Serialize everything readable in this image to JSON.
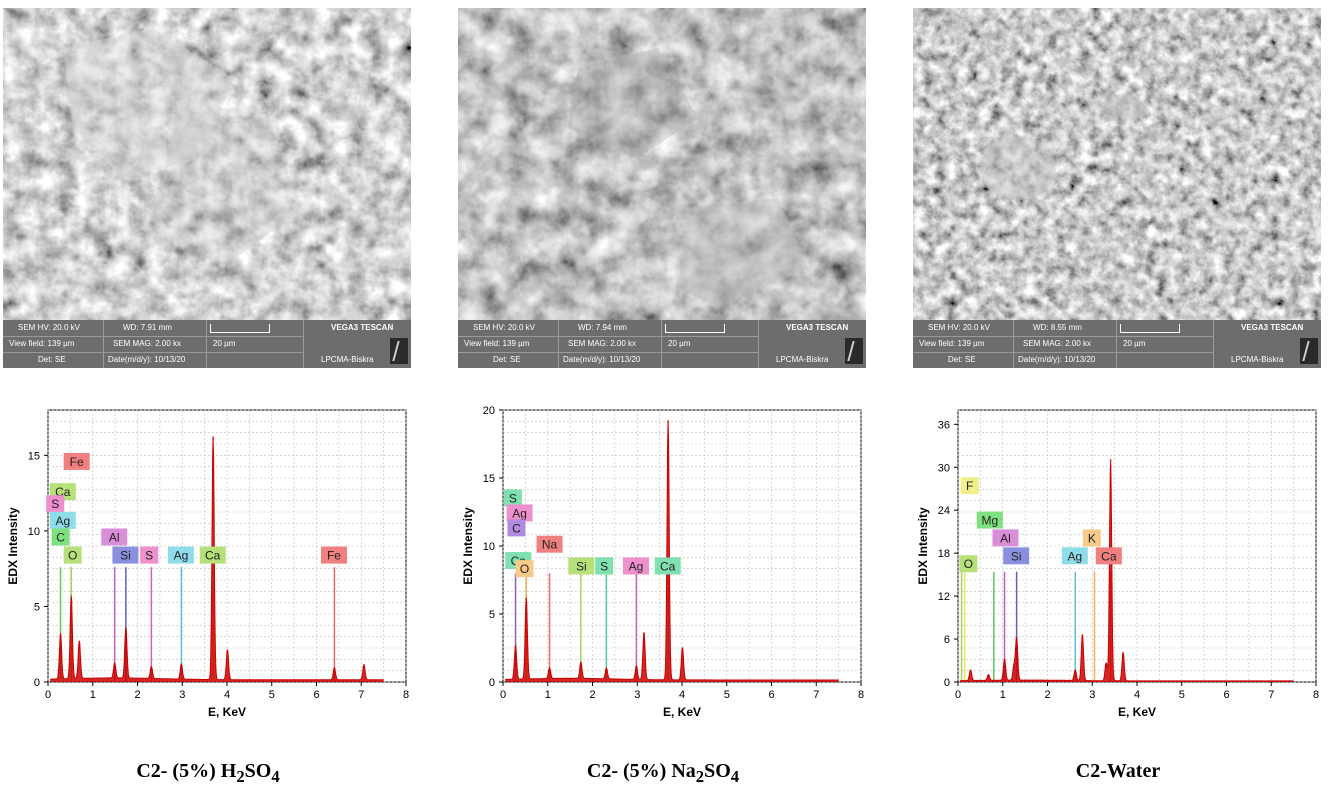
{
  "panels": [
    {
      "sem": {
        "hv": "SEM HV: 20.0 kV",
        "wd": "WD: 7.91 mm",
        "brand": "VEGA3 TESCAN",
        "field": "View field: 139 µm",
        "mag": "SEM MAG: 2.00 kx",
        "scale": "20 µm",
        "det": "Det: SE",
        "date": "Date(m/d/y): 10/13/20",
        "lab": "LPCMA-Biskra"
      },
      "caption": {
        "prefix": "C2- (5%) H",
        "sub1": "2",
        "mid": "SO",
        "sub2": "4"
      }
    },
    {
      "sem": {
        "hv": "SEM HV: 20.0 kV",
        "wd": "WD: 7.94 mm",
        "brand": "VEGA3 TESCAN",
        "field": "View field: 139 µm",
        "mag": "SEM MAG: 2.00 kx",
        "scale": "20 µm",
        "det": "Det: SE",
        "date": "Date(m/d/y): 10/13/20",
        "lab": "LPCMA-Biskra"
      },
      "caption": {
        "prefix": "C2- (5%) Na",
        "sub1": "2",
        "mid": "SO",
        "sub2": "4"
      }
    },
    {
      "sem": {
        "hv": "SEM HV: 20.0 kV",
        "wd": "WD: 8.55 mm",
        "brand": "VEGA3 TESCAN",
        "field": "View field: 139 µm",
        "mag": "SEM MAG: 2.00 kx",
        "scale": "20 µm",
        "det": "Det: SE",
        "date": "Date(m/d/y): 10/13/20",
        "lab": "LPCMA-Biskra"
      },
      "caption": {
        "prefix": "C2-Water",
        "sub1": "",
        "mid": "",
        "sub2": ""
      }
    }
  ],
  "chart_data": [
    {
      "type": "line",
      "xlabel": "E, KeV",
      "ylabel": "EDX Intensity",
      "xlim": [
        0,
        8
      ],
      "ylim": [
        0,
        18
      ],
      "grid": true,
      "xticks": [
        0,
        1,
        2,
        3,
        4,
        5,
        6,
        7,
        8
      ],
      "yticks": [
        0,
        5,
        10,
        15
      ],
      "spectrum_color": "#cc0000",
      "peaks": [
        {
          "x": 0.28,
          "y": 3.0
        },
        {
          "x": 0.52,
          "y": 5.5
        },
        {
          "x": 0.7,
          "y": 2.5
        },
        {
          "x": 1.49,
          "y": 1.0
        },
        {
          "x": 1.74,
          "y": 3.4
        },
        {
          "x": 2.31,
          "y": 0.8
        },
        {
          "x": 2.98,
          "y": 1.0
        },
        {
          "x": 3.69,
          "y": 16.1
        },
        {
          "x": 4.01,
          "y": 2.0
        },
        {
          "x": 6.4,
          "y": 0.8
        },
        {
          "x": 7.06,
          "y": 1.0
        }
      ],
      "element_lines": [
        {
          "label": "Fe",
          "x": 6.4,
          "y": 7.6,
          "color": "#e36b6b"
        },
        {
          "label": "Ca",
          "x": 3.69,
          "y": 7.6,
          "color": "#a8d35a"
        },
        {
          "label": "Ag",
          "x": 2.98,
          "y": 7.6,
          "color": "#5cc6d8"
        },
        {
          "label": "S",
          "x": 2.31,
          "y": 7.6,
          "color": "#e25fae"
        },
        {
          "label": "Si",
          "x": 1.74,
          "y": 7.6,
          "color": "#5b5fc7"
        },
        {
          "label": "Al",
          "x": 1.49,
          "y": 7.6,
          "color": "#c25fc2"
        },
        {
          "label": "O",
          "x": 0.52,
          "y": 7.6,
          "color": "#a8d35a"
        },
        {
          "label": "C",
          "x": 0.28,
          "y": 7.6,
          "color": "#5ec95e"
        }
      ],
      "tags": [
        {
          "label": "Fe",
          "x": 0.35,
          "y": 14.3,
          "color": "#f08080"
        },
        {
          "label": "Ca",
          "x": 0.04,
          "y": 12.3,
          "color": "#b5e07a"
        },
        {
          "label": "S",
          "x": -0.04,
          "y": 11.5,
          "color": "#f08fcd"
        },
        {
          "label": "Ag",
          "x": 0.04,
          "y": 10.4,
          "color": "#8fdcea"
        },
        {
          "label": "C",
          "x": 0.08,
          "y": 9.3,
          "color": "#7fe07f"
        },
        {
          "label": "Al",
          "x": 1.19,
          "y": 9.3,
          "color": "#d88fd8"
        },
        {
          "label": "O",
          "x": 0.35,
          "y": 8.1,
          "color": "#b5e07a"
        },
        {
          "label": "Si",
          "x": 1.44,
          "y": 8.1,
          "color": "#8b8fe0"
        },
        {
          "label": "S",
          "x": 2.06,
          "y": 8.1,
          "color": "#f08fcd"
        },
        {
          "label": "Ag",
          "x": 2.68,
          "y": 8.1,
          "color": "#8fdcea"
        },
        {
          "label": "Ca",
          "x": 3.39,
          "y": 8.1,
          "color": "#b5e07a"
        },
        {
          "label": "Fe",
          "x": 6.1,
          "y": 8.1,
          "color": "#f08080"
        }
      ]
    },
    {
      "type": "line",
      "xlabel": "E, KeV",
      "ylabel": "EDX Intensity",
      "xlim": [
        0,
        8
      ],
      "ylim": [
        0,
        20
      ],
      "grid": true,
      "xticks": [
        0,
        1,
        2,
        3,
        4,
        5,
        6,
        7,
        8
      ],
      "yticks": [
        0,
        5,
        10,
        15,
        20
      ],
      "spectrum_color": "#cc0000",
      "peaks": [
        {
          "x": 0.28,
          "y": 2.5
        },
        {
          "x": 0.52,
          "y": 6.0
        },
        {
          "x": 1.04,
          "y": 0.8
        },
        {
          "x": 1.74,
          "y": 1.2
        },
        {
          "x": 2.31,
          "y": 0.8
        },
        {
          "x": 2.98,
          "y": 1.0
        },
        {
          "x": 3.15,
          "y": 3.5
        },
        {
          "x": 3.69,
          "y": 19.1
        },
        {
          "x": 4.01,
          "y": 2.4
        }
      ],
      "element_lines": [
        {
          "label": "Ca",
          "x": 3.69,
          "y": 8.0,
          "color": "#5fc7a0"
        },
        {
          "label": "Ag",
          "x": 2.98,
          "y": 8.0,
          "color": "#e25fae"
        },
        {
          "label": "S",
          "x": 2.31,
          "y": 8.0,
          "color": "#5fc7a0"
        },
        {
          "label": "Si",
          "x": 1.74,
          "y": 8.0,
          "color": "#a8d35a"
        },
        {
          "label": "Na",
          "x": 1.04,
          "y": 8.0,
          "color": "#e36b6b"
        },
        {
          "label": "O",
          "x": 0.52,
          "y": 8.0,
          "color": "#f2b25a"
        },
        {
          "label": "C",
          "x": 0.28,
          "y": 8.0,
          "color": "#8b5fc7"
        }
      ],
      "tags": [
        {
          "label": "S",
          "x": 0.02,
          "y": 13.2,
          "color": "#7fe0b0"
        },
        {
          "label": "Ag",
          "x": 0.08,
          "y": 12.1,
          "color": "#f08fcd"
        },
        {
          "label": "C",
          "x": 0.1,
          "y": 11.0,
          "color": "#b08be0"
        },
        {
          "label": "Na",
          "x": 0.75,
          "y": 9.8,
          "color": "#f08080"
        },
        {
          "label": "Ca",
          "x": 0.05,
          "y": 8.6,
          "color": "#7fe0b0"
        },
        {
          "label": "O",
          "x": 0.28,
          "y": 8.0,
          "color": "#f7c98a"
        },
        {
          "label": "Si",
          "x": 1.46,
          "y": 8.2,
          "color": "#b5e07a"
        },
        {
          "label": "S",
          "x": 2.06,
          "y": 8.2,
          "color": "#7fe0b0"
        },
        {
          "label": "Ag",
          "x": 2.68,
          "y": 8.2,
          "color": "#f08fcd"
        },
        {
          "label": "Ca",
          "x": 3.39,
          "y": 8.2,
          "color": "#7fe0b0"
        }
      ]
    },
    {
      "type": "line",
      "xlabel": "E, KeV",
      "ylabel": "EDX Intensity",
      "xlim": [
        0,
        8
      ],
      "ylim": [
        0,
        38
      ],
      "grid": true,
      "xticks": [
        0,
        1,
        2,
        3,
        4,
        5,
        6,
        7,
        8
      ],
      "yticks": [
        0,
        6,
        12,
        18,
        24,
        30,
        36
      ],
      "spectrum_color": "#cc0000",
      "peaks": [
        {
          "x": 0.28,
          "y": 1.5
        },
        {
          "x": 0.68,
          "y": 0.8
        },
        {
          "x": 1.04,
          "y": 3.0
        },
        {
          "x": 1.25,
          "y": 2.0
        },
        {
          "x": 1.31,
          "y": 6.0
        },
        {
          "x": 2.62,
          "y": 1.5
        },
        {
          "x": 2.78,
          "y": 6.5
        },
        {
          "x": 3.31,
          "y": 2.5
        },
        {
          "x": 3.41,
          "y": 31.0
        },
        {
          "x": 3.69,
          "y": 4.0
        }
      ],
      "element_lines": [
        {
          "label": "Ca",
          "x": 3.41,
          "y": 15.4,
          "color": "#e36b6b"
        },
        {
          "label": "K",
          "x": 3.05,
          "y": 15.4,
          "color": "#f2b25a"
        },
        {
          "label": "Ag",
          "x": 2.62,
          "y": 15.4,
          "color": "#5cc6d8"
        },
        {
          "label": "Si",
          "x": 1.31,
          "y": 15.4,
          "color": "#5b5fc7"
        },
        {
          "label": "Al",
          "x": 1.04,
          "y": 15.4,
          "color": "#c25fc2"
        },
        {
          "label": "Mg",
          "x": 0.8,
          "y": 15.4,
          "color": "#5ec95e"
        },
        {
          "label": "F",
          "x": 0.15,
          "y": 15.4,
          "color": "#e8e85a"
        },
        {
          "label": "O",
          "x": 0.08,
          "y": 15.4,
          "color": "#a8d35a"
        }
      ],
      "tags": [
        {
          "label": "F",
          "x": 0.06,
          "y": 26.8,
          "color": "#f0f08a"
        },
        {
          "label": "Mg",
          "x": 0.42,
          "y": 22.0,
          "color": "#7fe07f"
        },
        {
          "label": "Al",
          "x": 0.77,
          "y": 19.5,
          "color": "#d88fd8"
        },
        {
          "label": "K",
          "x": 2.79,
          "y": 19.5,
          "color": "#f7c98a"
        },
        {
          "label": "Si",
          "x": 1.01,
          "y": 17.0,
          "color": "#8b8fe0"
        },
        {
          "label": "Ag",
          "x": 2.32,
          "y": 17.0,
          "color": "#8fdcea"
        },
        {
          "label": "Ca",
          "x": 3.08,
          "y": 17.0,
          "color": "#f08080"
        },
        {
          "label": "O",
          "x": 0.03,
          "y": 15.9,
          "color": "#b5e07a"
        }
      ]
    }
  ]
}
